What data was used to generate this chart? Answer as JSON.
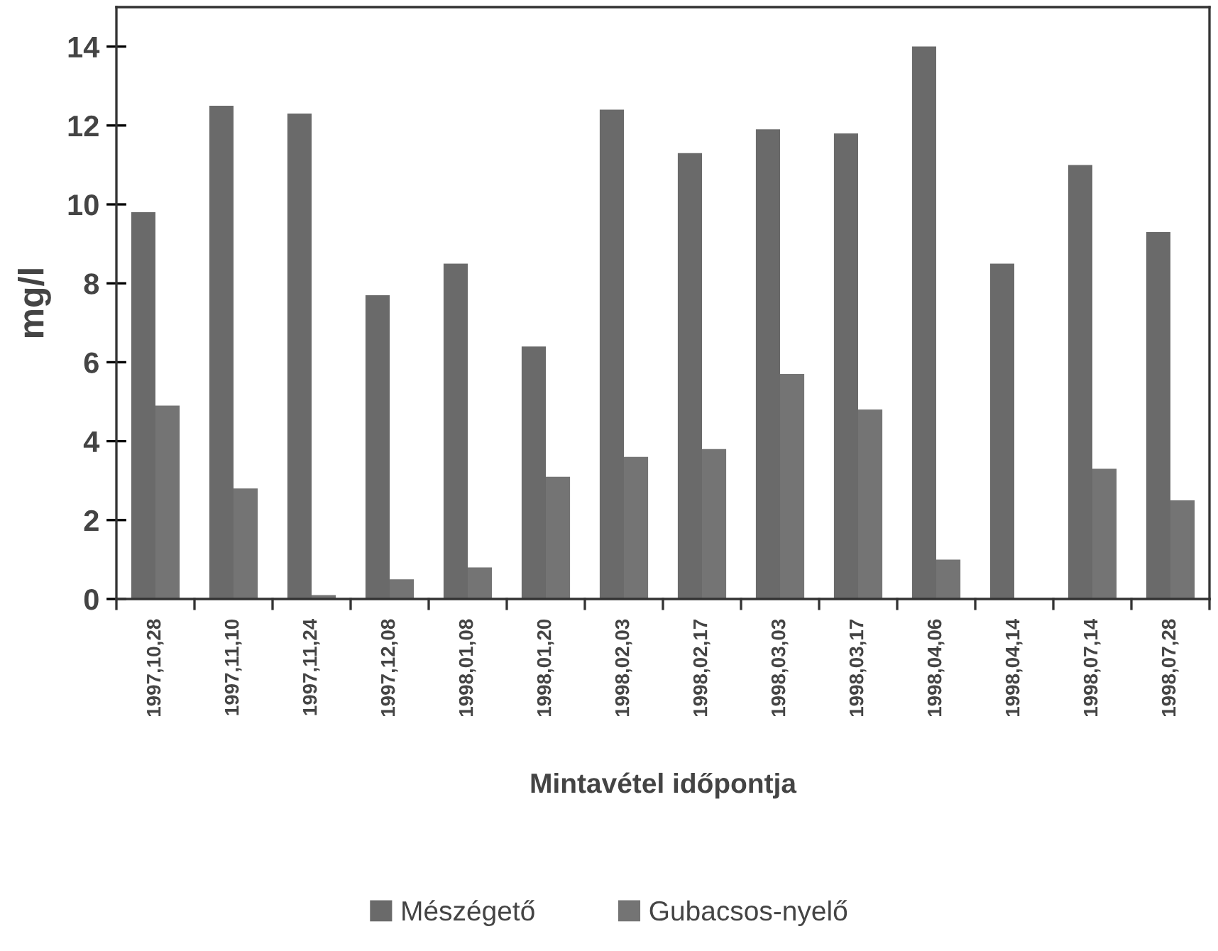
{
  "chart_data": {
    "type": "bar",
    "xlabel": "Mintavétel időpontja",
    "ylabel": "mg/l",
    "categories": [
      "1997,10,28",
      "1997,11,10",
      "1997,11,24",
      "1997,12,08",
      "1998,01,08",
      "1998,01,20",
      "1998,02,03",
      "1998,02,17",
      "1998,03,03",
      "1998,03,17",
      "1998,04,06",
      "1998,04,14",
      "1998,07,14",
      "1998,07,28"
    ],
    "series": [
      {
        "name": "Mészégető",
        "color": "#6a6a6a",
        "values": [
          9.8,
          12.5,
          12.3,
          7.7,
          8.5,
          6.4,
          12.4,
          11.3,
          11.9,
          11.8,
          14.0,
          8.5,
          11.0,
          9.3
        ]
      },
      {
        "name": "Gubacsos-nyelő",
        "color": "#747474",
        "values": [
          4.9,
          2.8,
          0.1,
          0.5,
          0.8,
          3.1,
          3.6,
          3.8,
          5.7,
          4.8,
          1.0,
          0,
          3.3,
          2.5
        ]
      }
    ],
    "ylim": [
      0,
      15
    ],
    "yticks": [
      0,
      2,
      4,
      6,
      8,
      10,
      12,
      14
    ],
    "grid": false,
    "legend": "bottom"
  }
}
